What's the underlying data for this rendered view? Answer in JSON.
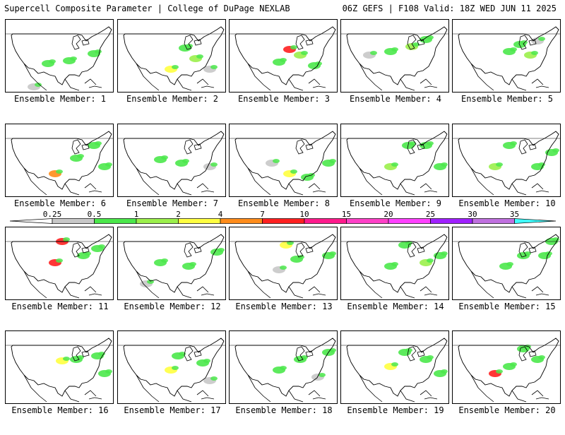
{
  "header": {
    "title_left": "Supercell Composite Parameter | College of DuPage NEXLAB",
    "title_right": "06Z GEFS | F108 Valid: 18Z WED JUN 11 2025"
  },
  "members": [
    {
      "label": "Ensemble Member: 1",
      "blobs": [
        [
          60,
          62,
          "#4be84b"
        ],
        [
          90,
          58,
          "#4be84b"
        ],
        [
          125,
          48,
          "#4be84b"
        ],
        [
          40,
          95,
          "#c8c8c8"
        ]
      ]
    },
    {
      "label": "Ensemble Member: 2",
      "blobs": [
        [
          75,
          70,
          "#ffff40"
        ],
        [
          95,
          40,
          "#4be84b"
        ],
        [
          110,
          55,
          "#9bf04b"
        ],
        [
          130,
          70,
          "#c8c8c8"
        ]
      ]
    },
    {
      "label": "Ensemble Member: 3",
      "blobs": [
        [
          85,
          42,
          "#ff2020"
        ],
        [
          70,
          60,
          "#4be84b"
        ],
        [
          120,
          65,
          "#4be84b"
        ],
        [
          100,
          50,
          "#9bf04b"
        ]
      ]
    },
    {
      "label": "Ensemble Member: 4",
      "blobs": [
        [
          70,
          45,
          "#4be84b"
        ],
        [
          100,
          38,
          "#9bf04b"
        ],
        [
          120,
          28,
          "#4be84b"
        ],
        [
          40,
          50,
          "#c8c8c8"
        ]
      ]
    },
    {
      "label": "Ensemble Member: 5",
      "blobs": [
        [
          80,
          45,
          "#4be84b"
        ],
        [
          95,
          35,
          "#4be84b"
        ],
        [
          120,
          30,
          "#c8c8c8"
        ],
        [
          110,
          50,
          "#9bf04b"
        ]
      ]
    },
    {
      "label": "Ensemble Member: 6",
      "blobs": [
        [
          70,
          70,
          "#ff8c1a"
        ],
        [
          100,
          48,
          "#4be84b"
        ],
        [
          125,
          30,
          "#4be84b"
        ],
        [
          140,
          60,
          "#4be84b"
        ]
      ]
    },
    {
      "label": "Ensemble Member: 7",
      "blobs": [
        [
          60,
          50,
          "#4be84b"
        ],
        [
          90,
          55,
          "#4be84b"
        ],
        [
          130,
          60,
          "#c8c8c8"
        ]
      ]
    },
    {
      "label": "Ensemble Member: 8",
      "blobs": [
        [
          85,
          70,
          "#ffff40"
        ],
        [
          110,
          75,
          "#4be84b"
        ],
        [
          140,
          55,
          "#4be84b"
        ],
        [
          60,
          55,
          "#c8c8c8"
        ]
      ]
    },
    {
      "label": "Ensemble Member: 9",
      "blobs": [
        [
          70,
          60,
          "#9bf04b"
        ],
        [
          95,
          30,
          "#4be84b"
        ],
        [
          120,
          30,
          "#4be84b"
        ],
        [
          140,
          60,
          "#4be84b"
        ]
      ]
    },
    {
      "label": "Ensemble Member: 10",
      "blobs": [
        [
          60,
          60,
          "#9bf04b"
        ],
        [
          80,
          30,
          "#4be84b"
        ],
        [
          120,
          60,
          "#4be84b"
        ],
        [
          140,
          40,
          "#4be84b"
        ]
      ]
    },
    {
      "label": "Ensemble Member: 11",
      "blobs": [
        [
          80,
          20,
          "#ff2020"
        ],
        [
          70,
          50,
          "#ff2020"
        ],
        [
          110,
          40,
          "#4be84b"
        ],
        [
          130,
          30,
          "#4be84b"
        ]
      ]
    },
    {
      "label": "Ensemble Member: 12",
      "blobs": [
        [
          60,
          50,
          "#4be84b"
        ],
        [
          100,
          55,
          "#4be84b"
        ],
        [
          140,
          35,
          "#4be84b"
        ],
        [
          40,
          80,
          "#c8c8c8"
        ]
      ]
    },
    {
      "label": "Ensemble Member: 13",
      "blobs": [
        [
          80,
          25,
          "#ffff40"
        ],
        [
          95,
          45,
          "#4be84b"
        ],
        [
          140,
          40,
          "#4be84b"
        ],
        [
          70,
          60,
          "#c8c8c8"
        ]
      ]
    },
    {
      "label": "Ensemble Member: 14",
      "blobs": [
        [
          90,
          25,
          "#4be84b"
        ],
        [
          70,
          55,
          "#4be84b"
        ],
        [
          120,
          50,
          "#9bf04b"
        ],
        [
          140,
          40,
          "#4be84b"
        ]
      ]
    },
    {
      "label": "Ensemble Member: 15",
      "blobs": [
        [
          75,
          55,
          "#4be84b"
        ],
        [
          100,
          40,
          "#4be84b"
        ],
        [
          130,
          40,
          "#4be84b"
        ],
        [
          140,
          20,
          "#4be84b"
        ]
      ]
    },
    {
      "label": "Ensemble Member: 16",
      "blobs": [
        [
          80,
          42,
          "#ffff40"
        ],
        [
          100,
          40,
          "#4be84b"
        ],
        [
          130,
          35,
          "#4be84b"
        ],
        [
          140,
          60,
          "#4be84b"
        ]
      ]
    },
    {
      "label": "Ensemble Member: 17",
      "blobs": [
        [
          75,
          55,
          "#ffff40"
        ],
        [
          85,
          35,
          "#4be84b"
        ],
        [
          120,
          45,
          "#4be84b"
        ],
        [
          130,
          70,
          "#c8c8c8"
        ]
      ]
    },
    {
      "label": "Ensemble Member: 18",
      "blobs": [
        [
          70,
          55,
          "#4be84b"
        ],
        [
          100,
          40,
          "#4be84b"
        ],
        [
          125,
          65,
          "#c8c8c8"
        ],
        [
          140,
          30,
          "#4be84b"
        ]
      ]
    },
    {
      "label": "Ensemble Member: 19",
      "blobs": [
        [
          70,
          50,
          "#ffff40"
        ],
        [
          90,
          30,
          "#4be84b"
        ],
        [
          120,
          40,
          "#4be84b"
        ],
        [
          140,
          60,
          "#4be84b"
        ]
      ]
    },
    {
      "label": "Ensemble Member: 20",
      "blobs": [
        [
          60,
          60,
          "#ff2020"
        ],
        [
          80,
          50,
          "#4be84b"
        ],
        [
          120,
          40,
          "#4be84b"
        ],
        [
          100,
          25,
          "#4be84b"
        ]
      ]
    }
  ],
  "legend": {
    "labels": [
      "0.25",
      "0.5",
      "1",
      "2",
      "4",
      "7",
      "10",
      "15",
      "20",
      "25",
      "30",
      "35"
    ],
    "colors": [
      "#c8c8c8",
      "#4be84b",
      "#9bf04b",
      "#ffff40",
      "#ff8c1a",
      "#ff2020",
      "#ff1a8c",
      "#ff40c8",
      "#ff40ff",
      "#a020ff",
      "#c070e0",
      "#40ffff"
    ]
  }
}
